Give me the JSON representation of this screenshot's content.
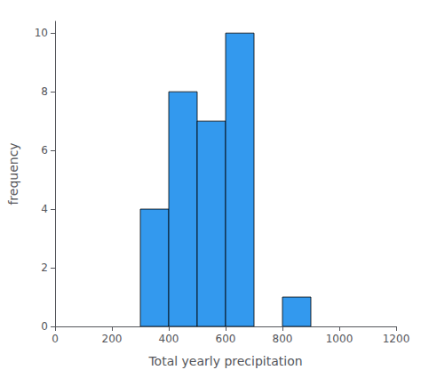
{
  "chart_data": {
    "type": "histogram",
    "xlabel": "Total yearly precipitation",
    "ylabel": "frequency",
    "bins": [
      300,
      400,
      500,
      600,
      700,
      800,
      900
    ],
    "values": [
      4,
      8,
      7,
      10,
      0,
      1
    ],
    "color": "#3399ee",
    "xlim": [
      0,
      1200
    ],
    "ylim": [
      0,
      10.4
    ],
    "xticks": [
      0,
      200,
      400,
      600,
      800,
      1000,
      1200
    ],
    "yticks": [
      0,
      2,
      4,
      6,
      8,
      10
    ],
    "grid": false
  }
}
